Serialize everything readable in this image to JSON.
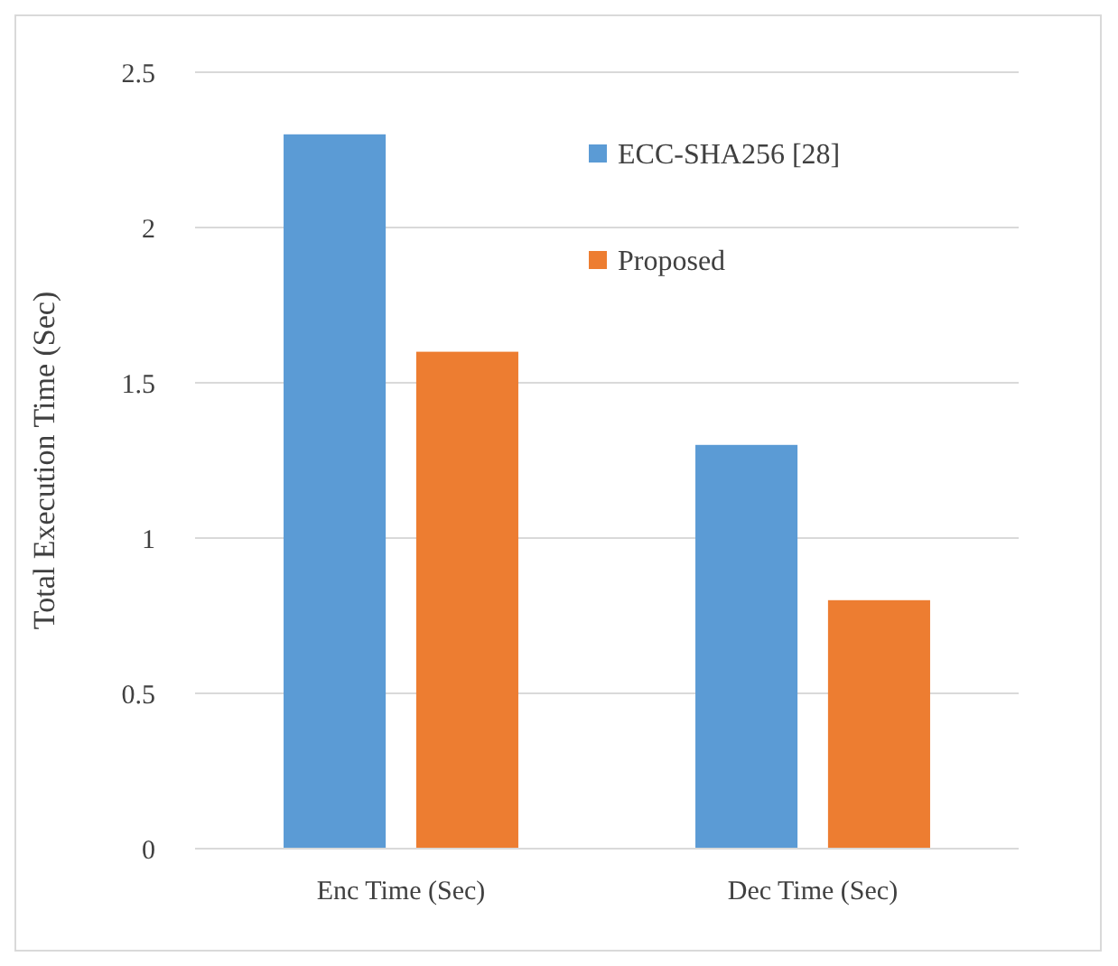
{
  "chart_data": {
    "type": "bar",
    "ylabel": "Total Execution Time (Sec)",
    "categories": [
      "Enc Time (Sec)",
      "Dec Time (Sec)"
    ],
    "series": [
      {
        "name": "ECC-SHA256 [28]",
        "color": "#5b9bd5",
        "values": [
          2.3,
          1.3
        ]
      },
      {
        "name": "Proposed",
        "color": "#ed7d31",
        "values": [
          1.6,
          0.8
        ]
      }
    ],
    "ylim": [
      0,
      2.5
    ],
    "yticks": [
      0,
      0.5,
      1,
      1.5,
      2,
      2.5
    ],
    "grid": "y",
    "legend": "top right"
  }
}
